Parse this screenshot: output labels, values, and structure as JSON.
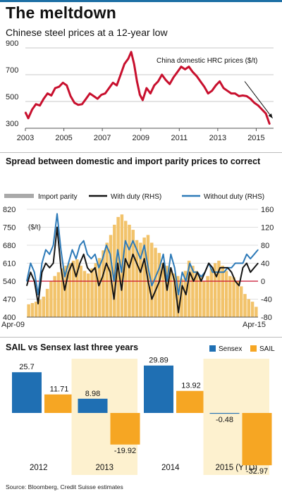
{
  "header": {
    "title": "The meltdown"
  },
  "footer": {
    "source": "Source: Bloomberg, Credit Suisse estimates"
  },
  "chart_data": [
    {
      "type": "line",
      "title": "Chinese steel prices at a 12-year low",
      "series": [
        {
          "name": "China domestic HRC prices ($/t)",
          "x": [
            2003.0,
            2003.15,
            2003.35,
            2003.55,
            2003.75,
            2003.95,
            2004.15,
            2004.35,
            2004.55,
            2004.75,
            2004.95,
            2005.15,
            2005.35,
            2005.55,
            2005.75,
            2005.95,
            2006.15,
            2006.35,
            2006.55,
            2006.75,
            2006.95,
            2007.15,
            2007.35,
            2007.55,
            2007.75,
            2007.95,
            2008.15,
            2008.35,
            2008.5,
            2008.65,
            2008.8,
            2008.95,
            2009.1,
            2009.3,
            2009.5,
            2009.7,
            2009.9,
            2010.1,
            2010.3,
            2010.5,
            2010.7,
            2010.9,
            2011.1,
            2011.3,
            2011.5,
            2011.7,
            2011.9,
            2012.1,
            2012.3,
            2012.5,
            2012.7,
            2012.9,
            2013.1,
            2013.3,
            2013.5,
            2013.7,
            2013.9,
            2014.1,
            2014.3,
            2014.5,
            2014.7,
            2014.9,
            2015.1,
            2015.3,
            2015.5,
            2015.7
          ],
          "values": [
            420,
            375,
            440,
            480,
            470,
            520,
            560,
            545,
            600,
            610,
            640,
            620,
            540,
            490,
            475,
            480,
            520,
            560,
            540,
            520,
            550,
            560,
            600,
            640,
            620,
            700,
            780,
            820,
            870,
            780,
            650,
            550,
            510,
            600,
            560,
            620,
            650,
            700,
            660,
            630,
            680,
            720,
            760,
            740,
            760,
            720,
            690,
            650,
            610,
            560,
            580,
            620,
            650,
            600,
            580,
            560,
            560,
            540,
            545,
            540,
            520,
            490,
            470,
            440,
            410,
            330
          ]
        }
      ],
      "xticks": [
        "2003",
        "2005",
        "2007",
        "2009",
        "2011",
        "2013",
        "2015"
      ],
      "yticks": [
        "300",
        "500",
        "700",
        "900"
      ],
      "ylim": [
        300,
        900
      ],
      "xlim": [
        2003,
        2015.9
      ],
      "color": "#c8102e",
      "trend_arrow": true
    },
    {
      "type": "bar",
      "title": "Spread between domestic and import parity prices to correct",
      "legend": [
        "Import parity",
        "With duty (RHS)",
        "Without duty (RHS)"
      ],
      "left_axis": {
        "label": "($/t)",
        "ticks": [
          "820",
          "750",
          "680",
          "610",
          "540",
          "470",
          "400"
        ],
        "ylim": [
          400,
          820
        ]
      },
      "right_axis": {
        "ticks": [
          "160",
          "120",
          "80",
          "40",
          "0",
          "-40",
          "-80"
        ],
        "ylim": [
          -80,
          160
        ]
      },
      "x_labels": [
        "Apr-09",
        "Apr-15"
      ],
      "series": [
        {
          "name": "Import parity",
          "values": [
            450,
            455,
            460,
            468,
            480,
            510,
            540,
            560,
            575,
            590,
            600,
            610,
            620,
            625,
            600,
            580,
            570,
            590,
            610,
            630,
            660,
            690,
            720,
            760,
            790,
            800,
            775,
            760,
            740,
            700,
            690,
            710,
            720,
            690,
            670,
            650,
            610,
            600,
            590,
            570,
            560,
            550,
            580,
            620,
            600,
            580,
            560,
            540,
            560,
            590,
            610,
            620,
            600,
            580,
            560,
            555,
            540,
            520,
            490,
            470,
            460,
            440
          ]
        },
        {
          "name": "With duty (RHS)",
          "values": [
            -10,
            20,
            0,
            -50,
            20,
            40,
            30,
            40,
            120,
            30,
            -20,
            20,
            40,
            10,
            40,
            60,
            30,
            20,
            30,
            -10,
            10,
            40,
            20,
            -40,
            40,
            -20,
            50,
            30,
            60,
            40,
            20,
            50,
            0,
            -40,
            -20,
            0,
            40,
            -20,
            30,
            0,
            -70,
            -10,
            -30,
            20,
            0,
            20,
            0,
            20,
            40,
            30,
            10,
            30,
            30,
            30,
            20,
            0,
            -10,
            30,
            40,
            20,
            30,
            40
          ]
        },
        {
          "name": "Without duty (RHS)",
          "values": [
            0,
            40,
            20,
            -30,
            40,
            70,
            60,
            80,
            150,
            70,
            10,
            40,
            70,
            50,
            80,
            90,
            60,
            50,
            60,
            30,
            50,
            80,
            60,
            0,
            70,
            20,
            90,
            70,
            90,
            70,
            50,
            80,
            30,
            -10,
            10,
            30,
            60,
            0,
            60,
            30,
            -30,
            20,
            0,
            40,
            20,
            20,
            10,
            20,
            40,
            20,
            20,
            20,
            20,
            30,
            30,
            40,
            40,
            40,
            60,
            50,
            60,
            70
          ]
        }
      ],
      "colors": {
        "bars": "#f2c36b",
        "with_duty": "#151515",
        "without_duty": "#2d7ab8",
        "zero_line": "#c8102e",
        "legend_swatch_import": "#a9a9a9"
      }
    },
    {
      "type": "bar",
      "title": "SAIL vs Sensex last three years",
      "legend": [
        "Sensex",
        "SAIL"
      ],
      "categories": [
        "2012",
        "2013",
        "2014",
        "2015 (YTD)"
      ],
      "series": [
        {
          "name": "Sensex",
          "values": [
            25.7,
            8.98,
            29.89,
            -0.48
          ],
          "labels": [
            "25.7",
            "8.98",
            "29.89",
            "-0.48"
          ]
        },
        {
          "name": "SAIL",
          "values": [
            11.71,
            -19.92,
            13.92,
            -32.97
          ],
          "labels": [
            "11.71",
            "-19.92",
            "13.92",
            "-32.97"
          ]
        }
      ],
      "colors": {
        "sensex": "#1f6fb3",
        "sail": "#f6a623",
        "panel_shade": "#fdf1cf"
      }
    }
  ]
}
